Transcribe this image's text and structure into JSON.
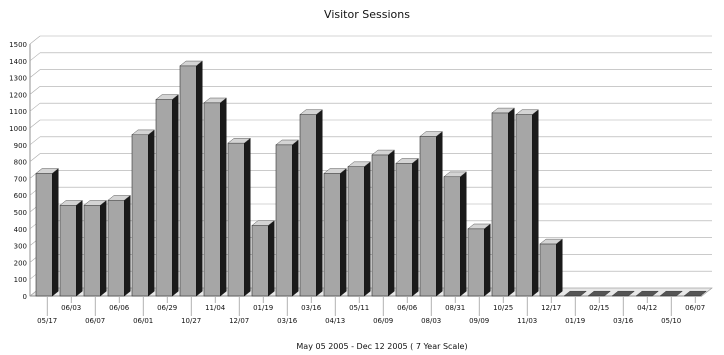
{
  "chart_data": {
    "type": "bar",
    "title": "Visitor Sessions",
    "xlabel": "May 05 2005 - Dec 12 2005 ( 7 Year Scale)",
    "ylabel": "",
    "ylim": [
      0,
      1500
    ],
    "yticks": [
      0,
      100,
      200,
      300,
      400,
      500,
      600,
      700,
      800,
      900,
      1000,
      1100,
      1200,
      1300,
      1400,
      1500
    ],
    "grid": true,
    "legend": "none",
    "bar_color": "#a6a6a6",
    "categories": [
      "05/17",
      "06/03",
      "06/07",
      "06/06",
      "06/01",
      "06/29",
      "10/27",
      "11/04",
      "12/07",
      "01/19",
      "03/16",
      "03/16",
      "04/13",
      "05/11",
      "06/09",
      "06/06",
      "08/03",
      "08/31",
      "09/09",
      "10/25",
      "11/03",
      "12/17",
      "01/19",
      "02/15",
      "03/16",
      "04/12",
      "05/10",
      "06/07"
    ],
    "values": [
      730,
      540,
      540,
      570,
      960,
      1170,
      1370,
      1150,
      910,
      420,
      900,
      1080,
      730,
      770,
      840,
      790,
      950,
      710,
      400,
      1090,
      1080,
      310,
      0,
      0,
      0,
      0,
      0,
      0
    ]
  }
}
